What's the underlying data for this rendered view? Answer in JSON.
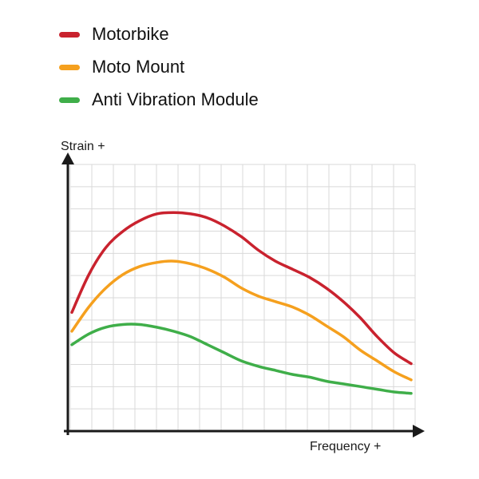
{
  "legend": {
    "items": [
      {
        "label": "Motorbike",
        "color": "#c9222e"
      },
      {
        "label": "Moto Mount",
        "color": "#f5a01e"
      },
      {
        "label": "Anti Vibration Module",
        "color": "#3fae49"
      }
    ]
  },
  "axes": {
    "y_label": "Strain +",
    "x_label": "Frequency +"
  },
  "chart_data": {
    "type": "line",
    "title": "",
    "xlabel": "Frequency +",
    "ylabel": "Strain +",
    "xlim": [
      0,
      100
    ],
    "ylim": [
      0,
      100
    ],
    "grid": true,
    "grid_color": "#d9d9d9",
    "axis_color": "#1a1a1a",
    "legend_position": "top-left",
    "x": [
      0,
      5,
      10,
      15,
      20,
      25,
      30,
      35,
      40,
      45,
      50,
      55,
      60,
      65,
      70,
      75,
      80,
      85,
      90,
      95,
      100
    ],
    "series": [
      {
        "name": "Motorbike",
        "color": "#c9222e",
        "values": [
          44,
          58,
          68,
          74,
          78,
          80.5,
          81,
          80.5,
          79,
          76,
          72,
          67,
          63,
          60,
          57,
          53,
          48,
          42,
          35,
          29,
          25
        ]
      },
      {
        "name": "Moto Mount",
        "color": "#f5a01e",
        "values": [
          37,
          46,
          53,
          58,
          61,
          62.5,
          63,
          62,
          60,
          57,
          53,
          50,
          48,
          46,
          43,
          39,
          35,
          30,
          26,
          22,
          19
        ]
      },
      {
        "name": "Anti Vibration Module",
        "color": "#3fae49",
        "values": [
          32,
          36,
          38.5,
          39.5,
          39.5,
          38.5,
          37,
          35,
          32,
          29,
          26,
          24,
          22.5,
          21,
          20,
          18.5,
          17.5,
          16.5,
          15.5,
          14.5,
          14
        ]
      }
    ]
  }
}
